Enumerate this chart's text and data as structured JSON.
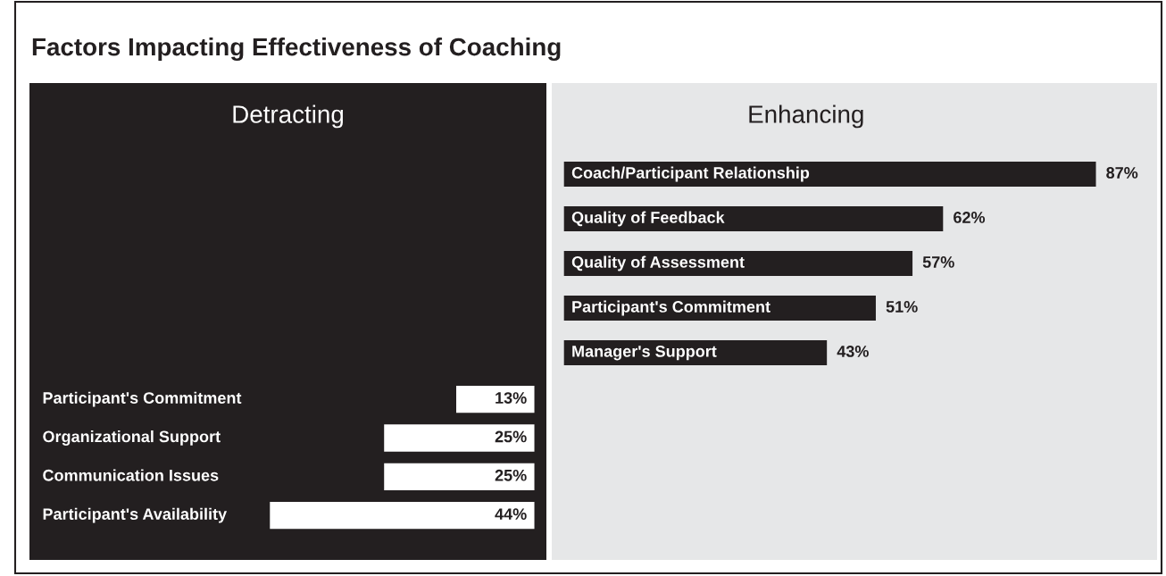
{
  "chart_data": [
    {
      "type": "bar",
      "orientation": "horizontal",
      "title": "Detracting",
      "categories": [
        "Participant's Commitment",
        "Organizational Support",
        "Communication Issues",
        "Participant's Availability"
      ],
      "values": [
        13,
        25,
        25,
        44
      ],
      "color": "#ffffff",
      "xlim": [
        84,
        -2
      ],
      "tick_labels": false,
      "value_labels": [
        "13%",
        "25%",
        "25%",
        "44%"
      ],
      "annotations": [
        "Factors Impacting Effectiveness of Coaching"
      ]
    },
    {
      "type": "bar",
      "orientation": "horizontal",
      "title": "Enhancing",
      "categories": [
        "Coach/Participant Relationship",
        "Quality of Feedback",
        "Quality of Assessment",
        "Participant's Commitment",
        "Manager's Support"
      ],
      "values": [
        87,
        62,
        57,
        51,
        43
      ],
      "color": "#231f20",
      "xlim": [
        -2,
        97
      ],
      "tick_labels": false,
      "value_labels": [
        "87%",
        "62%",
        "57%",
        "51%",
        "43%"
      ]
    }
  ]
}
